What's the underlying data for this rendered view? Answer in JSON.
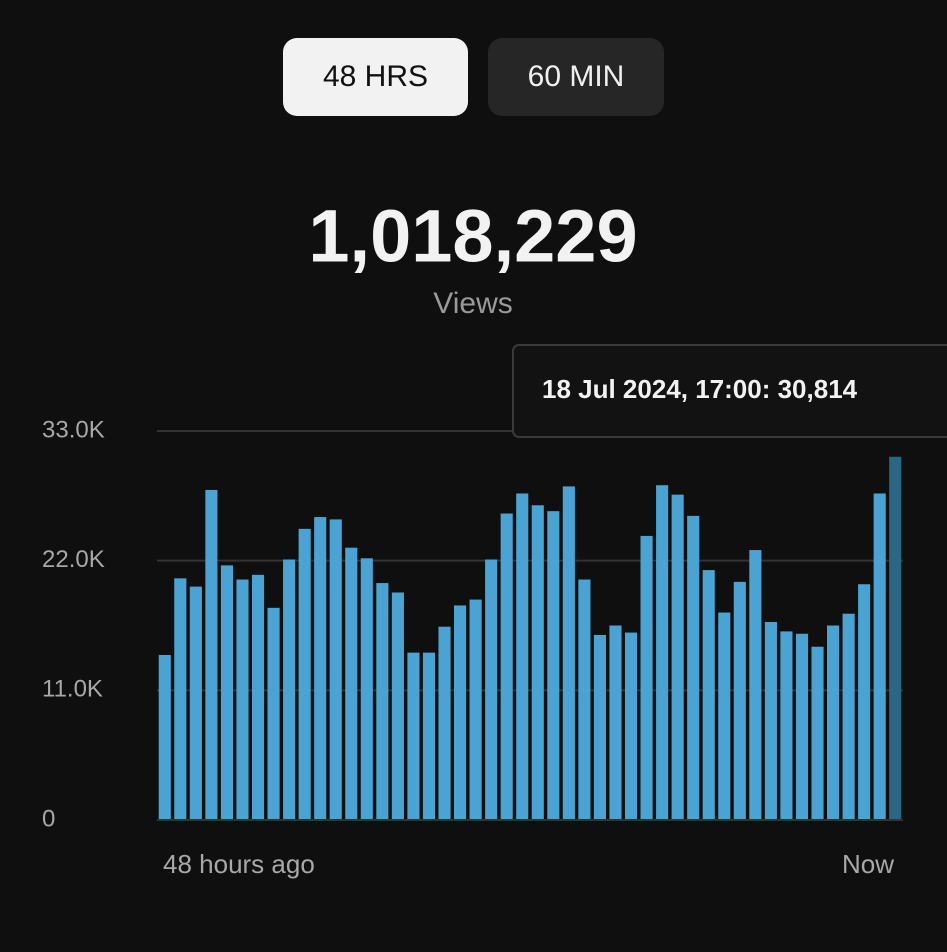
{
  "tabs": [
    "48 HRS",
    "60 MIN"
  ],
  "active_tab": 0,
  "total": "1,018,229",
  "total_label": "Views",
  "tooltip": "18 Jul 2024, 17:00: 30,814",
  "chart_data": {
    "type": "bar",
    "categories": [
      null,
      null,
      null,
      null,
      null,
      null,
      null,
      null,
      null,
      null,
      null,
      null,
      null,
      null,
      null,
      null,
      null,
      null,
      null,
      null,
      null,
      null,
      null,
      null,
      null,
      null,
      null,
      null,
      null,
      null,
      null,
      null,
      null,
      null,
      null,
      null,
      null,
      null,
      null,
      null,
      null,
      null,
      null,
      null,
      null,
      null,
      null,
      null
    ],
    "values": [
      14000,
      20500,
      19800,
      28000,
      21600,
      20400,
      20800,
      18000,
      22100,
      24700,
      25700,
      25500,
      23100,
      22200,
      20100,
      19300,
      14200,
      14200,
      16400,
      18200,
      18700,
      22100,
      26000,
      27700,
      26700,
      26200,
      28300,
      20400,
      15700,
      16500,
      15900,
      24100,
      28400,
      27600,
      25800,
      21200,
      17600,
      20200,
      22900,
      16800,
      16000,
      15800,
      14700,
      16500,
      17500,
      20000,
      27700,
      30814
    ],
    "color": "#4aa3d2",
    "selected": 47,
    "selected_color": "#2b6684",
    "ylim": [
      0,
      33000
    ],
    "yticks": [
      0,
      {
        "value": 11000,
        "label": "11.0K"
      },
      {
        "value": 22000,
        "label": "22.0K"
      },
      {
        "value": 33000,
        "label": "33.0K"
      }
    ],
    "grid": true,
    "x_start_label": "48 hours ago",
    "x_end_label": "Now"
  }
}
